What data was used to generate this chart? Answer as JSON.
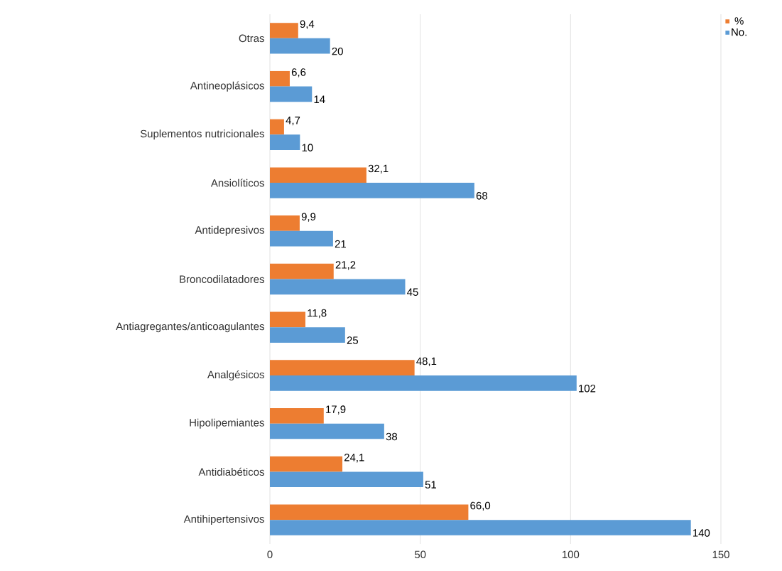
{
  "chart_data": {
    "type": "bar",
    "orientation": "horizontal",
    "categories": [
      "Otras",
      "Antineoplásicos",
      "Suplementos nutricionales",
      "Ansiolíticos",
      "Antidepresivos",
      "Broncodilatadores",
      "Antiagregantes/anticoagulantes",
      "Analgésicos",
      "Hipolipemiantes",
      "Antidiabéticos",
      "Antihipertensivos"
    ],
    "series": [
      {
        "name": "%",
        "color": "#ed7d31",
        "values": [
          9.4,
          6.6,
          4.7,
          32.1,
          9.9,
          21.2,
          11.8,
          48.1,
          17.9,
          24.1,
          66.0
        ],
        "value_labels": [
          "9,4",
          "6,6",
          "4,7",
          "32,1",
          "9,9",
          "21,2",
          "11,8",
          "48,1",
          "17,9",
          "24,1",
          "66,0"
        ]
      },
      {
        "name": "No.",
        "color": "#5b9bd5",
        "values": [
          20,
          14,
          10,
          68,
          21,
          45,
          25,
          102,
          38,
          51,
          140
        ],
        "value_labels": [
          "20",
          "14",
          "10",
          "68",
          "21",
          "45",
          "25",
          "102",
          "38",
          "51",
          "140"
        ]
      }
    ],
    "xlim": [
      0,
      150
    ],
    "xticks": [
      0,
      50,
      100,
      150
    ],
    "grid": "x",
    "legend": "top right"
  }
}
